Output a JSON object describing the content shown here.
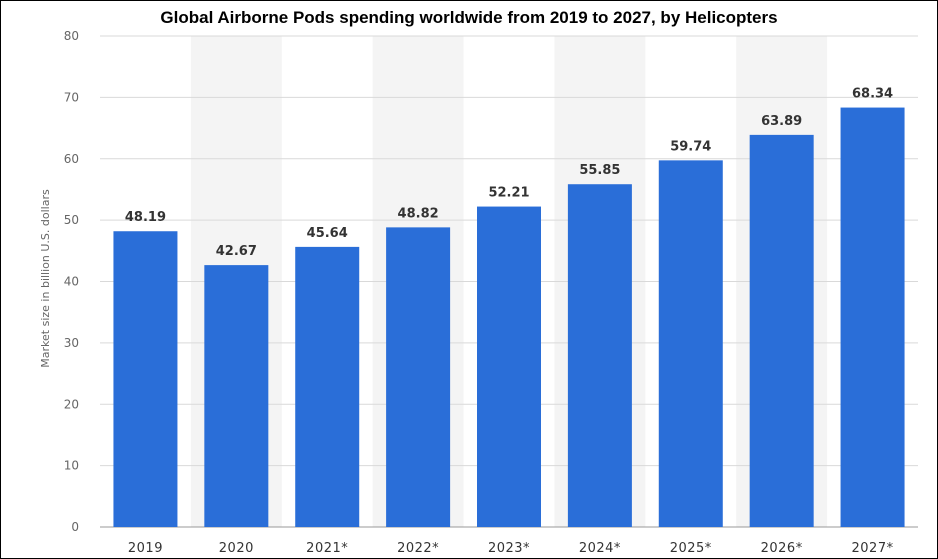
{
  "chart_data": {
    "type": "bar",
    "title": "Global Airborne Pods spending worldwide from 2019 to 2027, by Helicopters",
    "xlabel": "",
    "ylabel": "Market size in billion U.S. dollars",
    "categories": [
      "2019",
      "2020",
      "2021*",
      "2022*",
      "2023*",
      "2024*",
      "2025*",
      "2026*",
      "2027*"
    ],
    "values": [
      48.19,
      42.67,
      45.64,
      48.82,
      52.21,
      55.85,
      59.74,
      63.89,
      68.34
    ],
    "value_labels": [
      "48.19",
      "42.67",
      "45.64",
      "48.82",
      "52.21",
      "55.85",
      "59.74",
      "63.89",
      "68.34"
    ],
    "ylim": [
      0,
      80
    ],
    "yticks": [
      "0",
      "10",
      "20",
      "30",
      "40",
      "50",
      "60",
      "70",
      "80"
    ],
    "grid": true,
    "bar_color": "#2a6ed8",
    "band_color": "#f4f4f4",
    "grid_color": "#d9d9d9"
  }
}
